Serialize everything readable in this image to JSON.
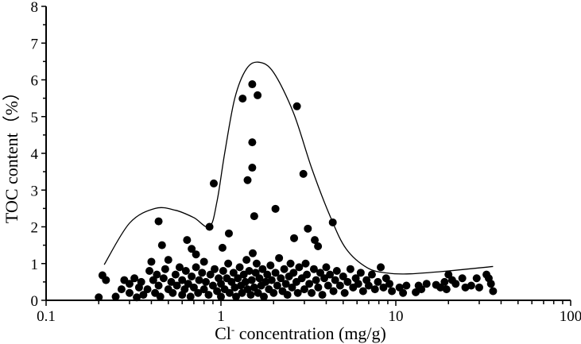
{
  "chart_data": {
    "type": "scatter",
    "title": "",
    "xlabel": "Cl⁻ concentration (mg/g)",
    "xlabel_parts": {
      "pre": "Cl",
      "sup": "-",
      "post": " concentration (mg/g)"
    },
    "ylabel": "TOC content（%）",
    "xscale": "log",
    "xlim": [
      0.1,
      100
    ],
    "ylim": [
      0,
      8
    ],
    "xticks": [
      "0.1",
      "1",
      "10",
      "100"
    ],
    "yticks": [
      "0",
      "1",
      "2",
      "3",
      "4",
      "5",
      "6",
      "7",
      "8"
    ],
    "grid": false,
    "colors": {
      "points": "#000000",
      "envelope": "#000000"
    },
    "envelope": [
      [
        0.215,
        0.97
      ],
      [
        0.3,
        2.1
      ],
      [
        0.42,
        2.5
      ],
      [
        0.55,
        2.45
      ],
      [
        0.7,
        2.25
      ],
      [
        0.86,
        2.0
      ],
      [
        0.95,
        2.7
      ],
      [
        1.05,
        4.0
      ],
      [
        1.2,
        5.5
      ],
      [
        1.4,
        6.3
      ],
      [
        1.65,
        6.48
      ],
      [
        2.0,
        6.2
      ],
      [
        2.6,
        5.1
      ],
      [
        3.3,
        3.6
      ],
      [
        4.2,
        2.3
      ],
      [
        5.2,
        1.4
      ],
      [
        6.9,
        0.88
      ],
      [
        9.0,
        0.74
      ],
      [
        12,
        0.72
      ],
      [
        20,
        0.8
      ],
      [
        36,
        0.92
      ]
    ],
    "points": [
      [
        0.91,
        3.18
      ],
      [
        0.86,
        2.0
      ],
      [
        1.33,
        5.49
      ],
      [
        1.51,
        5.88
      ],
      [
        1.62,
        5.58
      ],
      [
        1.51,
        4.3
      ],
      [
        1.51,
        3.61
      ],
      [
        1.42,
        3.27
      ],
      [
        1.55,
        2.29
      ],
      [
        2.05,
        2.49
      ],
      [
        2.72,
        5.28
      ],
      [
        2.96,
        3.44
      ],
      [
        4.36,
        2.12
      ],
      [
        3.14,
        1.95
      ],
      [
        3.44,
        1.64
      ],
      [
        3.59,
        1.47
      ],
      [
        2.62,
        1.69
      ],
      [
        1.11,
        1.82
      ],
      [
        1.02,
        1.43
      ],
      [
        0.64,
        1.64
      ],
      [
        0.46,
        1.5
      ],
      [
        0.44,
        2.15
      ],
      [
        1.52,
        1.28
      ],
      [
        0.72,
        1.25
      ],
      [
        0.68,
        1.4
      ],
      [
        0.2,
        0.08
      ],
      [
        0.21,
        0.68
      ],
      [
        0.22,
        0.55
      ],
      [
        0.25,
        0.1
      ],
      [
        0.27,
        0.3
      ],
      [
        0.28,
        0.55
      ],
      [
        0.3,
        0.45
      ],
      [
        0.3,
        0.2
      ],
      [
        0.32,
        0.6
      ],
      [
        0.33,
        0.08
      ],
      [
        0.34,
        0.35
      ],
      [
        0.35,
        0.5
      ],
      [
        0.36,
        0.15
      ],
      [
        0.38,
        0.3
      ],
      [
        0.39,
        0.8
      ],
      [
        0.4,
        1.05
      ],
      [
        0.41,
        0.55
      ],
      [
        0.42,
        0.2
      ],
      [
        0.43,
        0.7
      ],
      [
        0.44,
        0.4
      ],
      [
        0.45,
        0.1
      ],
      [
        0.47,
        0.6
      ],
      [
        0.48,
        0.85
      ],
      [
        0.5,
        0.3
      ],
      [
        0.5,
        1.1
      ],
      [
        0.52,
        0.5
      ],
      [
        0.53,
        0.2
      ],
      [
        0.55,
        0.7
      ],
      [
        0.56,
        0.4
      ],
      [
        0.58,
        0.9
      ],
      [
        0.6,
        0.15
      ],
      [
        0.6,
        0.55
      ],
      [
        0.62,
        0.3
      ],
      [
        0.63,
        0.8
      ],
      [
        0.65,
        0.45
      ],
      [
        0.67,
        0.1
      ],
      [
        0.68,
        0.65
      ],
      [
        0.7,
        0.35
      ],
      [
        0.72,
        0.9
      ],
      [
        0.74,
        0.2
      ],
      [
        0.75,
        0.55
      ],
      [
        0.78,
        0.75
      ],
      [
        0.8,
        0.3
      ],
      [
        0.8,
        1.05
      ],
      [
        0.82,
        0.5
      ],
      [
        0.85,
        0.15
      ],
      [
        0.87,
        0.7
      ],
      [
        0.9,
        0.4
      ],
      [
        0.92,
        0.85
      ],
      [
        0.95,
        0.25
      ],
      [
        0.97,
        0.6
      ],
      [
        1.0,
        0.1
      ],
      [
        1.0,
        0.45
      ],
      [
        1.03,
        0.8
      ],
      [
        1.05,
        0.3
      ],
      [
        1.08,
        0.6
      ],
      [
        1.1,
        1.0
      ],
      [
        1.12,
        0.2
      ],
      [
        1.15,
        0.5
      ],
      [
        1.18,
        0.75
      ],
      [
        1.2,
        0.35
      ],
      [
        1.22,
        0.1
      ],
      [
        1.25,
        0.6
      ],
      [
        1.28,
        0.9
      ],
      [
        1.3,
        0.4
      ],
      [
        1.32,
        0.2
      ],
      [
        1.35,
        0.7
      ],
      [
        1.38,
        0.5
      ],
      [
        1.4,
        1.1
      ],
      [
        1.42,
        0.3
      ],
      [
        1.45,
        0.8
      ],
      [
        1.48,
        0.15
      ],
      [
        1.5,
        0.55
      ],
      [
        1.55,
        0.35
      ],
      [
        1.58,
        0.75
      ],
      [
        1.6,
        1.0
      ],
      [
        1.63,
        0.2
      ],
      [
        1.66,
        0.6
      ],
      [
        1.7,
        0.4
      ],
      [
        1.73,
        0.85
      ],
      [
        1.76,
        0.1
      ],
      [
        1.8,
        0.5
      ],
      [
        1.84,
        0.7
      ],
      [
        1.88,
        0.3
      ],
      [
        1.92,
        0.95
      ],
      [
        1.95,
        0.55
      ],
      [
        2.0,
        0.2
      ],
      [
        2.05,
        0.75
      ],
      [
        2.1,
        0.4
      ],
      [
        2.15,
        1.15
      ],
      [
        2.2,
        0.6
      ],
      [
        2.25,
        0.25
      ],
      [
        2.3,
        0.85
      ],
      [
        2.35,
        0.45
      ],
      [
        2.4,
        0.15
      ],
      [
        2.45,
        0.65
      ],
      [
        2.5,
        1.0
      ],
      [
        2.55,
        0.35
      ],
      [
        2.6,
        0.75
      ],
      [
        2.7,
        0.5
      ],
      [
        2.75,
        0.2
      ],
      [
        2.8,
        0.9
      ],
      [
        2.9,
        0.6
      ],
      [
        3.0,
        0.3
      ],
      [
        3.05,
        1.0
      ],
      [
        3.1,
        0.7
      ],
      [
        3.2,
        0.45
      ],
      [
        3.3,
        0.2
      ],
      [
        3.4,
        0.85
      ],
      [
        3.5,
        0.55
      ],
      [
        3.6,
        0.35
      ],
      [
        3.7,
        0.75
      ],
      [
        3.8,
        0.15
      ],
      [
        3.9,
        0.6
      ],
      [
        4.0,
        0.9
      ],
      [
        4.1,
        0.4
      ],
      [
        4.2,
        0.7
      ],
      [
        4.4,
        0.25
      ],
      [
        4.5,
        0.55
      ],
      [
        4.6,
        0.8
      ],
      [
        4.8,
        0.4
      ],
      [
        5.0,
        0.65
      ],
      [
        5.1,
        0.2
      ],
      [
        5.3,
        0.5
      ],
      [
        5.5,
        0.85
      ],
      [
        5.7,
        0.35
      ],
      [
        5.9,
        0.6
      ],
      [
        6.1,
        0.45
      ],
      [
        6.3,
        0.75
      ],
      [
        6.5,
        0.25
      ],
      [
        6.8,
        0.55
      ],
      [
        7.0,
        0.4
      ],
      [
        7.3,
        0.7
      ],
      [
        7.6,
        0.3
      ],
      [
        7.9,
        0.5
      ],
      [
        8.2,
        0.9
      ],
      [
        8.5,
        0.35
      ],
      [
        8.8,
        0.6
      ],
      [
        9.2,
        0.45
      ],
      [
        9.5,
        0.25
      ],
      [
        10.5,
        0.35
      ],
      [
        11,
        0.2
      ],
      [
        11.5,
        0.4
      ],
      [
        13,
        0.22
      ],
      [
        13.5,
        0.4
      ],
      [
        14,
        0.3
      ],
      [
        15,
        0.45
      ],
      [
        17,
        0.42
      ],
      [
        18,
        0.35
      ],
      [
        19,
        0.5
      ],
      [
        19.5,
        0.3
      ],
      [
        20,
        0.7
      ],
      [
        21,
        0.55
      ],
      [
        22,
        0.45
      ],
      [
        24,
        0.6
      ],
      [
        25,
        0.35
      ],
      [
        27,
        0.4
      ],
      [
        29,
        0.6
      ],
      [
        30,
        0.35
      ],
      [
        33,
        0.7
      ],
      [
        34,
        0.6
      ],
      [
        35,
        0.45
      ],
      [
        36,
        0.25
      ]
    ]
  }
}
